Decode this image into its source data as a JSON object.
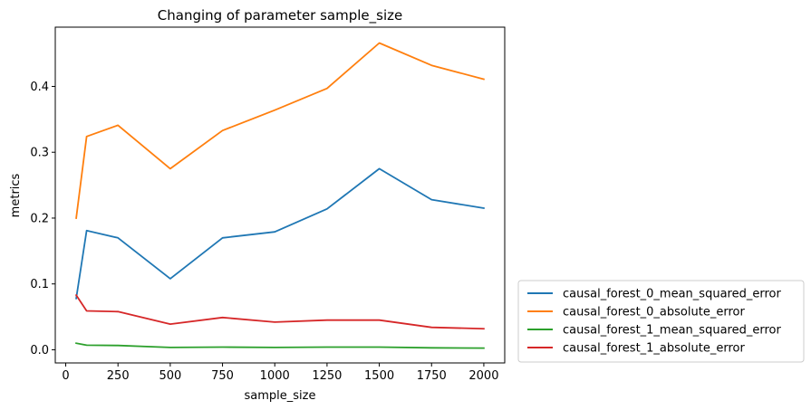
{
  "chart_data": {
    "type": "line",
    "title": "Changing of parameter sample_size",
    "xlabel": "sample_size",
    "ylabel": "metrics",
    "x": [
      50,
      100,
      250,
      500,
      750,
      1000,
      1250,
      1500,
      1750,
      2000
    ],
    "xlim": [
      -50,
      2100
    ],
    "ylim": [
      -0.02,
      0.49
    ],
    "xticks": [
      0,
      250,
      500,
      750,
      1000,
      1250,
      1500,
      1750,
      2000
    ],
    "yticks": [
      0.0,
      0.1,
      0.2,
      0.3,
      0.4
    ],
    "xtick_labels": [
      "0",
      "250",
      "500",
      "750",
      "1000",
      "1250",
      "1500",
      "1750",
      "2000"
    ],
    "ytick_labels": [
      "0.0",
      "0.1",
      "0.2",
      "0.3",
      "0.4"
    ],
    "grid": false,
    "legend_position": "outside-right-bottom",
    "series": [
      {
        "name": "causal_forest_0_mean_squared_error",
        "color": "#1f77b4",
        "values": [
          0.078,
          0.181,
          0.17,
          0.108,
          0.17,
          0.179,
          0.214,
          0.275,
          0.228,
          0.215
        ]
      },
      {
        "name": "causal_forest_0_absolute_error",
        "color": "#ff7f0e",
        "values": [
          0.2,
          0.324,
          0.341,
          0.275,
          0.333,
          0.364,
          0.397,
          0.466,
          0.432,
          0.411
        ]
      },
      {
        "name": "causal_forest_1_mean_squared_error",
        "color": "#2ca02c",
        "values": [
          0.01,
          0.007,
          0.0065,
          0.0035,
          0.004,
          0.0035,
          0.004,
          0.004,
          0.003,
          0.0025
        ]
      },
      {
        "name": "causal_forest_1_absolute_error",
        "color": "#d62728",
        "values": [
          0.083,
          0.059,
          0.058,
          0.039,
          0.049,
          0.042,
          0.045,
          0.045,
          0.034,
          0.032
        ]
      }
    ]
  }
}
